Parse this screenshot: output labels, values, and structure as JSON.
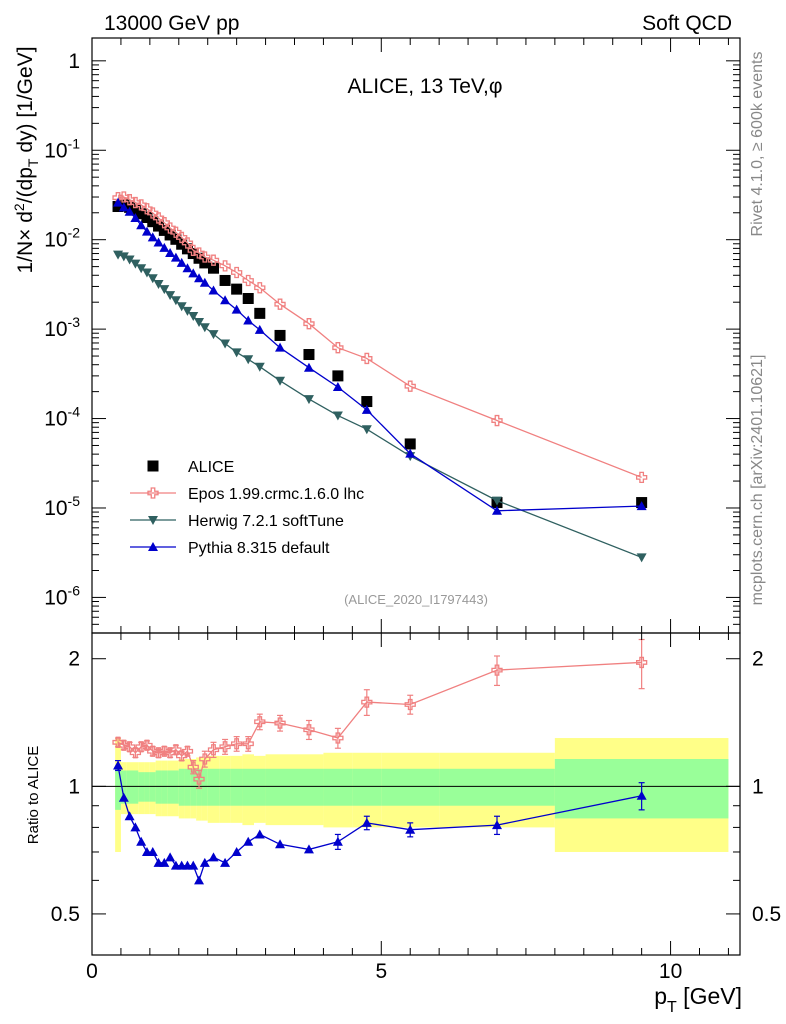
{
  "header": {
    "left": "13000 GeV pp",
    "right": "Soft QCD"
  },
  "side": {
    "rivet": "Rivet 4.1.0, ≥ 600k events",
    "mcplots": "mcplots.cern.ch [arXiv:2401.10621]"
  },
  "chart_data": {
    "type": "scatter",
    "title": "ALICE, 13 TeV,φ",
    "analysis_label": "(ALICE_2020_I1797443)",
    "xlabel": "p_T [GeV]",
    "ylabel": "1/N × d²/(dp_T dy) [1/GeV]",
    "ratio_ylabel": "Ratio to ALICE",
    "xlim": [
      0,
      11.2
    ],
    "ylim": [
      4e-07,
      1.8
    ],
    "ratio_ylim": [
      0.4,
      2.3
    ],
    "y_scale": "log",
    "x_ticks": [
      0,
      5,
      10
    ],
    "y_ticks": [
      1e-06,
      1e-05,
      0.0001,
      0.001,
      0.01,
      0.1,
      1
    ],
    "ratio_ticks": [
      0.5,
      1,
      2
    ],
    "legend_position": "bottom-left",
    "series": [
      {
        "name": "ALICE",
        "marker": "square",
        "color": "#000000",
        "line": false,
        "x": [
          0.45,
          0.55,
          0.65,
          0.75,
          0.85,
          0.95,
          1.05,
          1.15,
          1.25,
          1.35,
          1.45,
          1.55,
          1.65,
          1.75,
          1.85,
          1.95,
          2.1,
          2.3,
          2.5,
          2.7,
          2.9,
          3.25,
          3.75,
          4.25,
          4.75,
          5.5,
          7.0,
          9.5
        ],
        "y": [
          0.0235,
          0.0245,
          0.023,
          0.0215,
          0.0195,
          0.0177,
          0.0159,
          0.0142,
          0.0127,
          0.0113,
          0.0101,
          0.0089,
          0.0079,
          0.007,
          0.0062,
          0.0055,
          0.0048,
          0.0035,
          0.0028,
          0.0022,
          0.0015,
          0.00085,
          0.00052,
          0.0003,
          0.000155,
          5.2e-05,
          1.15e-05,
          1.15e-05
        ]
      },
      {
        "name": "Epos 1.99.crmc.1.6.0 lhc",
        "marker": "open-cross",
        "color": "#f08080",
        "line": true,
        "x": [
          0.45,
          0.55,
          0.65,
          0.75,
          0.85,
          0.95,
          1.05,
          1.15,
          1.25,
          1.35,
          1.45,
          1.55,
          1.65,
          1.75,
          1.85,
          1.95,
          2.1,
          2.3,
          2.5,
          2.7,
          2.9,
          3.25,
          3.75,
          4.25,
          4.75,
          5.5,
          7.0,
          9.5
        ],
        "y": [
          0.0295,
          0.03,
          0.028,
          0.026,
          0.0245,
          0.0222,
          0.0199,
          0.0175,
          0.0155,
          0.0135,
          0.0121,
          0.0106,
          0.0092,
          0.0076,
          0.0071,
          0.0064,
          0.0059,
          0.0051,
          0.0043,
          0.0035,
          0.0029,
          0.0019,
          0.00115,
          0.00062,
          0.00047,
          0.00023,
          9.5e-05,
          2.2e-05
        ]
      },
      {
        "name": "Herwig 7.2.1 softTune",
        "marker": "triangle-down",
        "color": "#2f6060",
        "line": true,
        "x": [
          0.45,
          0.55,
          0.65,
          0.75,
          0.85,
          0.95,
          1.05,
          1.15,
          1.25,
          1.35,
          1.45,
          1.55,
          1.65,
          1.75,
          1.85,
          1.95,
          2.1,
          2.3,
          2.5,
          2.7,
          2.9,
          3.25,
          3.75,
          4.25,
          4.75,
          5.5,
          7.0,
          9.5
        ],
        "y": [
          0.0068,
          0.0065,
          0.006,
          0.0054,
          0.0048,
          0.0043,
          0.0037,
          0.0032,
          0.0028,
          0.0024,
          0.0021,
          0.0018,
          0.0016,
          0.0014,
          0.0012,
          0.00105,
          0.00088,
          0.00069,
          0.00055,
          0.00046,
          0.00038,
          0.000265,
          0.000165,
          0.000108,
          7.6e-05,
          3.8e-05,
          1.21e-05,
          2.8e-06
        ]
      },
      {
        "name": "Pythia 8.315 default",
        "marker": "triangle-up",
        "color": "#0000cc",
        "line": true,
        "x": [
          0.45,
          0.55,
          0.65,
          0.75,
          0.85,
          0.95,
          1.05,
          1.15,
          1.25,
          1.35,
          1.45,
          1.55,
          1.65,
          1.75,
          1.85,
          1.95,
          2.1,
          2.3,
          2.5,
          2.7,
          2.9,
          3.25,
          3.75,
          4.25,
          4.75,
          5.5,
          7.0,
          9.5
        ],
        "y": [
          0.026,
          0.023,
          0.0205,
          0.0175,
          0.0145,
          0.0123,
          0.0106,
          0.0093,
          0.0081,
          0.0071,
          0.0063,
          0.0055,
          0.0048,
          0.0042,
          0.0037,
          0.0033,
          0.0027,
          0.0021,
          0.00165,
          0.00125,
          0.00098,
          0.00062,
          0.00037,
          0.000225,
          0.000125,
          4.05e-05,
          9.3e-06,
          1.05e-05
        ]
      }
    ],
    "ratio_series": [
      {
        "name": "Epos 1.99.crmc.1.6.0 lhc",
        "color": "#f08080",
        "marker": "open-cross",
        "x": [
          0.45,
          0.55,
          0.65,
          0.75,
          0.85,
          0.95,
          1.05,
          1.15,
          1.25,
          1.35,
          1.45,
          1.55,
          1.65,
          1.75,
          1.85,
          1.95,
          2.1,
          2.3,
          2.5,
          2.7,
          2.9,
          3.25,
          3.75,
          4.25,
          4.75,
          5.5,
          7.0,
          9.5
        ],
        "y": [
          1.27,
          1.25,
          1.24,
          1.2,
          1.24,
          1.25,
          1.21,
          1.2,
          1.21,
          1.2,
          1.22,
          1.18,
          1.21,
          1.11,
          1.04,
          1.16,
          1.22,
          1.24,
          1.26,
          1.26,
          1.42,
          1.41,
          1.36,
          1.3,
          1.58,
          1.56,
          1.88,
          1.96
        ],
        "err": [
          0.03,
          0.03,
          0.03,
          0.03,
          0.03,
          0.03,
          0.03,
          0.03,
          0.03,
          0.03,
          0.03,
          0.03,
          0.03,
          0.04,
          0.05,
          0.05,
          0.05,
          0.05,
          0.05,
          0.05,
          0.06,
          0.06,
          0.07,
          0.07,
          0.11,
          0.08,
          0.15,
          0.26
        ]
      },
      {
        "name": "Pythia 8.315 default",
        "color": "#0000cc",
        "marker": "triangle-up",
        "x": [
          0.45,
          0.55,
          0.65,
          0.75,
          0.85,
          0.95,
          1.05,
          1.15,
          1.25,
          1.35,
          1.45,
          1.55,
          1.65,
          1.75,
          1.85,
          1.95,
          2.1,
          2.3,
          2.5,
          2.7,
          2.9,
          3.25,
          3.75,
          4.25,
          4.75,
          5.5,
          7.0,
          9.5
        ],
        "y": [
          1.12,
          0.94,
          0.85,
          0.8,
          0.74,
          0.7,
          0.7,
          0.66,
          0.66,
          0.68,
          0.65,
          0.65,
          0.65,
          0.65,
          0.6,
          0.66,
          0.68,
          0.66,
          0.7,
          0.74,
          0.77,
          0.73,
          0.71,
          0.74,
          0.82,
          0.79,
          0.81,
          0.95
        ],
        "err": [
          0.03,
          0.02,
          0.02,
          0.02,
          0.02,
          0.02,
          0.02,
          0.02,
          0.02,
          0.02,
          0.02,
          0.02,
          0.02,
          0.02,
          0.02,
          0.02,
          0.02,
          0.02,
          0.02,
          0.02,
          0.02,
          0.02,
          0.02,
          0.03,
          0.03,
          0.03,
          0.04,
          0.07
        ]
      }
    ],
    "uncertainty_bands": {
      "bins": [
        [
          0.4,
          0.5
        ],
        [
          0.5,
          0.6
        ],
        [
          0.6,
          0.7
        ],
        [
          0.7,
          0.8
        ],
        [
          0.8,
          0.9
        ],
        [
          0.9,
          1.0
        ],
        [
          1.0,
          1.1
        ],
        [
          1.1,
          1.2
        ],
        [
          1.2,
          1.3
        ],
        [
          1.3,
          1.4
        ],
        [
          1.4,
          1.5
        ],
        [
          1.5,
          1.6
        ],
        [
          1.6,
          1.7
        ],
        [
          1.7,
          1.8
        ],
        [
          1.8,
          1.9
        ],
        [
          1.9,
          2.0
        ],
        [
          2.0,
          2.2
        ],
        [
          2.2,
          2.4
        ],
        [
          2.4,
          2.6
        ],
        [
          2.6,
          2.8
        ],
        [
          2.8,
          3.0
        ],
        [
          3.0,
          3.5
        ],
        [
          3.5,
          4.0
        ],
        [
          4.0,
          4.5
        ],
        [
          4.5,
          5.0
        ],
        [
          5.0,
          6.0
        ],
        [
          6.0,
          8.0
        ],
        [
          8.0,
          11.0
        ]
      ],
      "stat": [
        0.12,
        0.09,
        0.09,
        0.09,
        0.08,
        0.08,
        0.08,
        0.09,
        0.09,
        0.09,
        0.09,
        0.1,
        0.1,
        0.1,
        0.1,
        0.1,
        0.1,
        0.1,
        0.1,
        0.1,
        0.1,
        0.1,
        0.1,
        0.1,
        0.1,
        0.1,
        0.1,
        0.16
      ],
      "total": [
        0.3,
        0.14,
        0.14,
        0.14,
        0.14,
        0.14,
        0.14,
        0.15,
        0.15,
        0.15,
        0.15,
        0.16,
        0.16,
        0.16,
        0.17,
        0.17,
        0.18,
        0.18,
        0.18,
        0.19,
        0.18,
        0.19,
        0.19,
        0.2,
        0.2,
        0.2,
        0.2,
        0.3
      ],
      "stat_color": "#99ff99",
      "total_color": "#ffff88"
    }
  }
}
